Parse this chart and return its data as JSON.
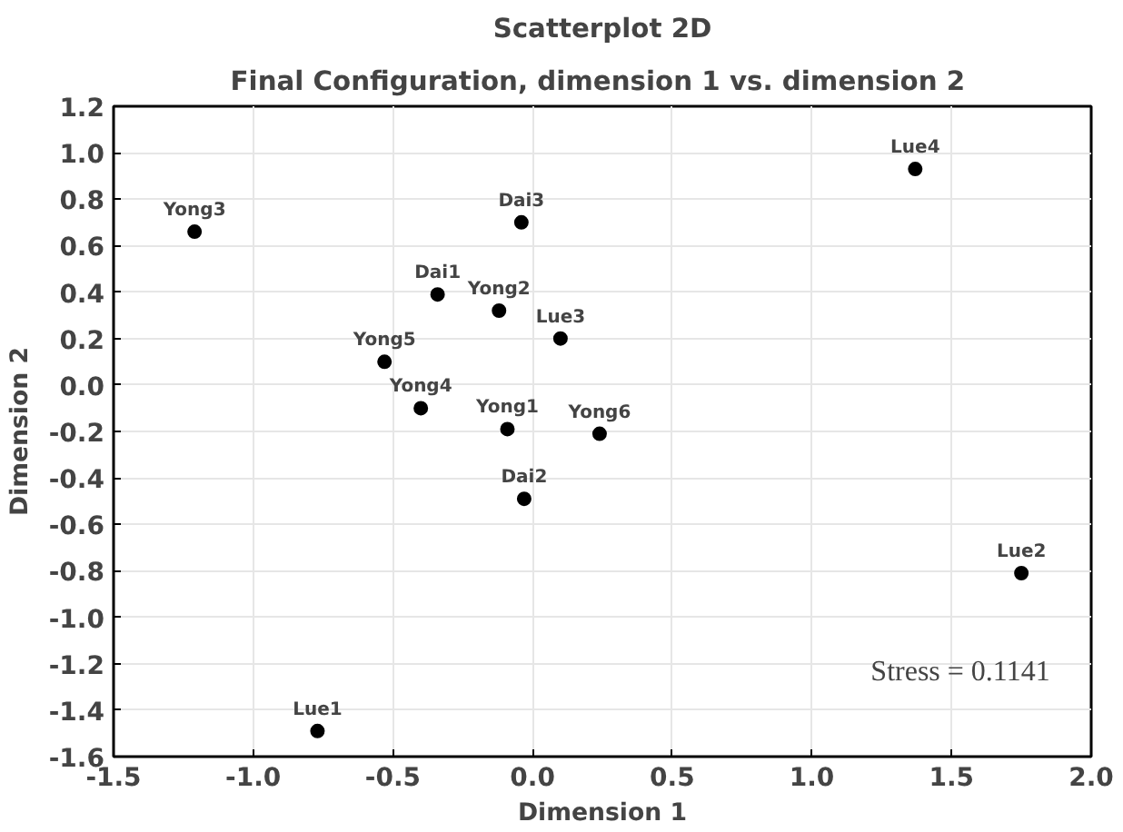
{
  "chart_data": {
    "type": "scatter",
    "title": "Scatterplot 2D",
    "subtitle": "Final Configuration, dimension 1  vs. dimension 2",
    "xlabel": "Dimension 1",
    "ylabel": "Dimension 2",
    "x": [
      -1.21,
      -0.04,
      -0.34,
      -0.12,
      0.1,
      -0.53,
      -0.4,
      -0.09,
      1.37,
      0.24,
      -0.03,
      -0.77,
      1.75
    ],
    "values": [
      0.66,
      0.7,
      0.39,
      0.32,
      0.2,
      0.1,
      -0.1,
      -0.19,
      0.93,
      -0.21,
      -0.49,
      -1.49,
      -0.81
    ],
    "color": "#000000",
    "marker": "circle",
    "grid": true,
    "xlim": [
      -1.5,
      2.0
    ],
    "xticks": [
      {
        "value": -1.5,
        "label": "-1.5"
      },
      {
        "value": -1.0,
        "label": "-1.0"
      },
      {
        "value": -0.5,
        "label": "-0.5"
      },
      {
        "value": 0.0,
        "label": "0.0"
      },
      {
        "value": 0.5,
        "label": "0.5"
      },
      {
        "value": 1.0,
        "label": "1.0"
      },
      {
        "value": 1.5,
        "label": "1.5"
      },
      {
        "value": 2.0,
        "label": "2.0"
      }
    ],
    "ylim": [
      -1.6,
      1.2
    ],
    "yticks": [
      {
        "value": -1.6,
        "label": "-1.6"
      },
      {
        "value": -1.4,
        "label": "-1.4"
      },
      {
        "value": -1.2,
        "label": "-1.2"
      },
      {
        "value": -1.0,
        "label": "-1.0"
      },
      {
        "value": -0.8,
        "label": "-0.8"
      },
      {
        "value": -0.6,
        "label": "-0.6"
      },
      {
        "value": -0.4,
        "label": "-0.4"
      },
      {
        "value": -0.2,
        "label": "-0.2"
      },
      {
        "value": 0.0,
        "label": "0.0"
      },
      {
        "value": 0.2,
        "label": "0.2"
      },
      {
        "value": 0.4,
        "label": "0.4"
      },
      {
        "value": 0.6,
        "label": "0.6"
      },
      {
        "value": 0.8,
        "label": "0.8"
      },
      {
        "value": 1.0,
        "label": "1.0"
      },
      {
        "value": 1.2,
        "label": "1.2"
      }
    ],
    "annotations": [
      {
        "text": "Yong3",
        "x": -1.21,
        "y": 0.66
      },
      {
        "text": "Dai3",
        "x": -0.04,
        "y": 0.7
      },
      {
        "text": "Dai1",
        "x": -0.34,
        "y": 0.39
      },
      {
        "text": "Yong2",
        "x": -0.12,
        "y": 0.32
      },
      {
        "text": "Lue3",
        "x": 0.1,
        "y": 0.2
      },
      {
        "text": "Yong5",
        "x": -0.53,
        "y": 0.1
      },
      {
        "text": "Yong4",
        "x": -0.4,
        "y": -0.1
      },
      {
        "text": "Yong1",
        "x": -0.09,
        "y": -0.19
      },
      {
        "text": "Lue4",
        "x": 1.37,
        "y": 0.93
      },
      {
        "text": "Yong6",
        "x": 0.24,
        "y": -0.21
      },
      {
        "text": "Dai2",
        "x": -0.03,
        "y": -0.49
      },
      {
        "text": "Lue1",
        "x": -0.77,
        "y": -1.49
      },
      {
        "text": "Lue2",
        "x": 1.75,
        "y": -0.81
      },
      "Stress = 0.1141"
    ]
  }
}
